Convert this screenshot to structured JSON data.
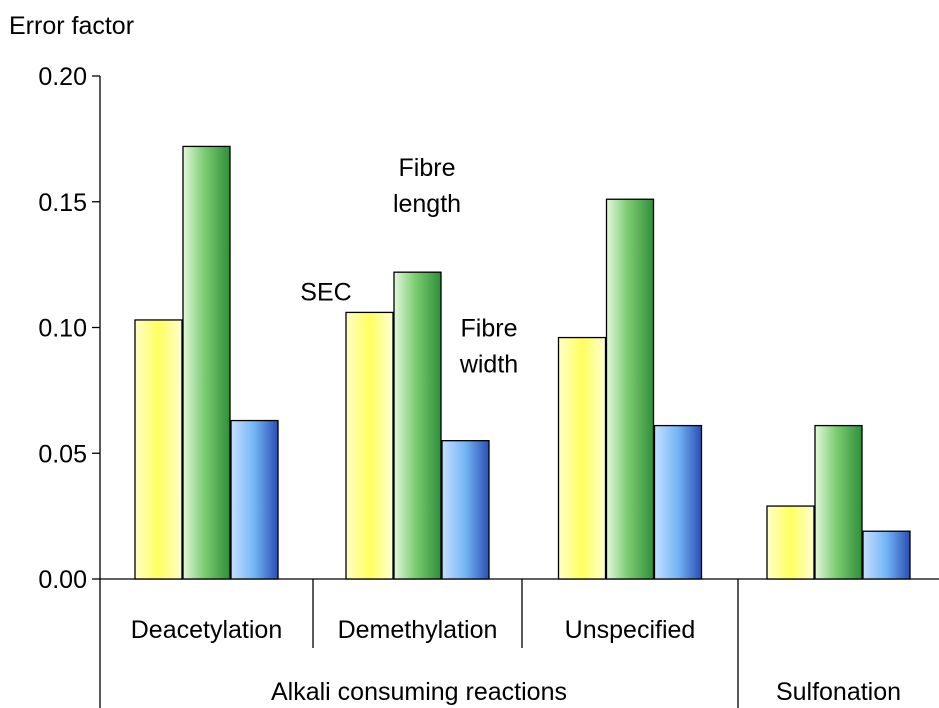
{
  "chart_data": {
    "type": "bar",
    "title": "",
    "ylabel": "Error factor",
    "xlabel": "",
    "ylim": [
      0,
      0.2
    ],
    "yticks": [
      "0.00",
      "0.05",
      "0.10",
      "0.15",
      "0.20"
    ],
    "ytick_values": [
      0,
      0.05,
      0.1,
      0.15,
      0.2
    ],
    "grid": false,
    "categories": [
      "Deacetylation",
      "Demethylation",
      "Unspecified",
      ""
    ],
    "groups": [
      {
        "label": "Alkali consuming reactions",
        "categories": [
          "Deacetylation",
          "Demethylation",
          "Unspecified"
        ]
      },
      {
        "label": "Sulfonation",
        "categories": [
          ""
        ]
      }
    ],
    "series": [
      {
        "name": "SEC",
        "color": "#ffff80",
        "values": [
          0.103,
          0.106,
          0.096,
          0.029
        ]
      },
      {
        "name": "Fibre length",
        "color": "#4caf50",
        "values": [
          0.172,
          0.122,
          0.151,
          0.061
        ]
      },
      {
        "name": "Fibre width",
        "color": "#5b9bd5",
        "values": [
          0.063,
          0.055,
          0.061,
          0.019
        ]
      }
    ],
    "annotations": [
      {
        "series": 0,
        "category": 1,
        "lines": [
          "SEC"
        ]
      },
      {
        "series": 1,
        "category": 1,
        "lines": [
          "Fibre",
          "length"
        ]
      },
      {
        "series": 2,
        "category": 1,
        "lines": [
          "Fibre",
          "width"
        ]
      }
    ]
  }
}
